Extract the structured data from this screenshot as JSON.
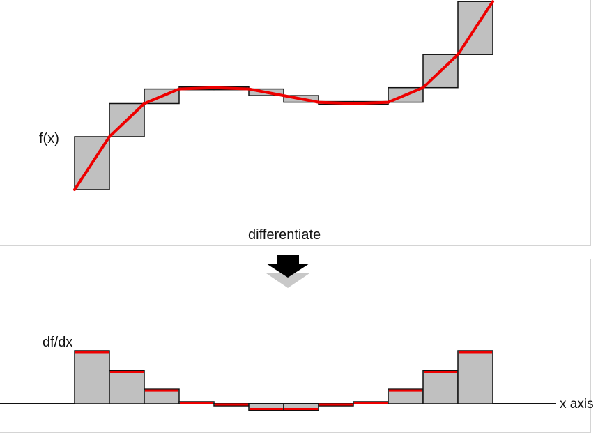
{
  "labels": {
    "fx": "f(x)",
    "differentiate": "differentiate",
    "dfdx": "df/dx",
    "xaxis": "x axis"
  },
  "colors": {
    "box_fill": "#c0c0c0",
    "box_stroke": "#111111",
    "curve": "#ee0000",
    "panel_border": "#d4d4d4",
    "arrow_dark": "#000000",
    "arrow_light": "#c8c8c8"
  },
  "icons": {
    "arrow": "down-arrow-icon"
  },
  "segments": [
    {
      "df": 4.0
    },
    {
      "df": 2.5
    },
    {
      "df": 1.1
    },
    {
      "df": 0.1
    },
    {
      "df": -0.1
    },
    {
      "df": -0.5
    },
    {
      "df": -0.5
    },
    {
      "df": -0.1
    },
    {
      "df": 0.1
    },
    {
      "df": 1.1
    },
    {
      "df": 2.5
    },
    {
      "df": 4.0
    }
  ]
}
